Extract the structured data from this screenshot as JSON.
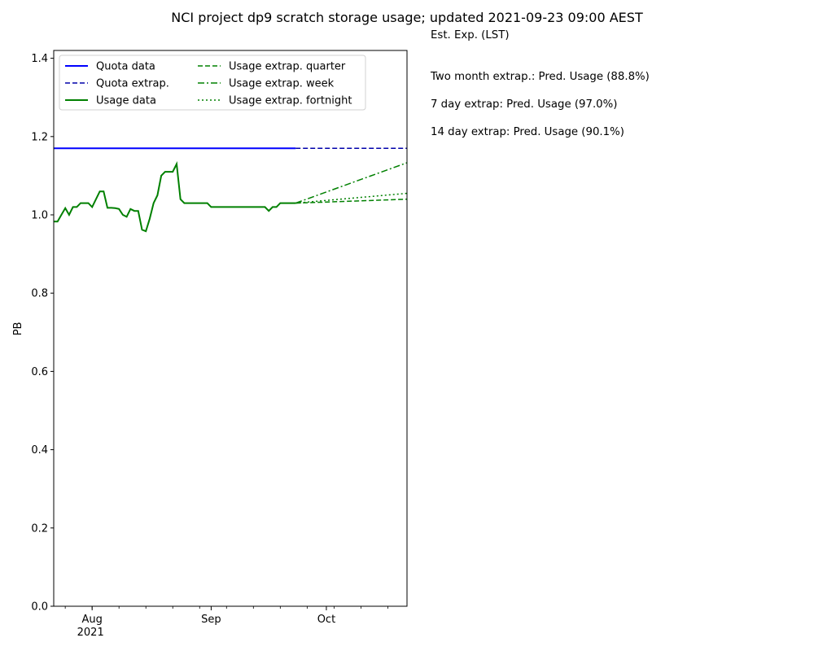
{
  "chart_data": {
    "type": "line",
    "title": "NCI project dp9 scratch storage usage; updated 2021-09-23 09:00 AEST",
    "xlabel": "",
    "ylabel": "PB",
    "ylim": [
      0,
      1.42
    ],
    "yticks": [
      "0.0",
      "0.2",
      "0.4",
      "0.6",
      "0.8",
      "1.0",
      "1.2",
      "1.4"
    ],
    "xlim": [
      "2021-07-22",
      "2021-10-22"
    ],
    "xticks": [
      {
        "date": "2021-08-01",
        "label": "Aug",
        "sublabel": "2021"
      },
      {
        "date": "2021-09-01",
        "label": "Sep",
        "sublabel": ""
      },
      {
        "date": "2021-10-01",
        "label": "Oct",
        "sublabel": ""
      }
    ],
    "legend_position": "top-left",
    "series": [
      {
        "name": "Quota data",
        "color": "#0000ff",
        "style": "solid",
        "points": [
          [
            "2021-07-22",
            1.17
          ],
          [
            "2021-09-23",
            1.17
          ]
        ]
      },
      {
        "name": "Quota extrap.",
        "color": "#0000aa",
        "style": "dashed",
        "points": [
          [
            "2021-09-23",
            1.17
          ],
          [
            "2021-10-22",
            1.17
          ]
        ]
      },
      {
        "name": "Usage data",
        "color": "#008000",
        "style": "solid",
        "points": [
          [
            "2021-07-22",
            0.983
          ],
          [
            "2021-07-23",
            0.983
          ],
          [
            "2021-07-24",
            1.0
          ],
          [
            "2021-07-25",
            1.017
          ],
          [
            "2021-07-26",
            1.0
          ],
          [
            "2021-07-27",
            1.02
          ],
          [
            "2021-07-28",
            1.02
          ],
          [
            "2021-07-29",
            1.03
          ],
          [
            "2021-07-30",
            1.03
          ],
          [
            "2021-07-31",
            1.03
          ],
          [
            "2021-08-01",
            1.02
          ],
          [
            "2021-08-02",
            1.04
          ],
          [
            "2021-08-03",
            1.06
          ],
          [
            "2021-08-04",
            1.06
          ],
          [
            "2021-08-05",
            1.018
          ],
          [
            "2021-08-06",
            1.018
          ],
          [
            "2021-08-07",
            1.017
          ],
          [
            "2021-08-08",
            1.015
          ],
          [
            "2021-08-09",
            1.0
          ],
          [
            "2021-08-10",
            0.995
          ],
          [
            "2021-08-11",
            1.015
          ],
          [
            "2021-08-12",
            1.01
          ],
          [
            "2021-08-13",
            1.01
          ],
          [
            "2021-08-14",
            0.962
          ],
          [
            "2021-08-15",
            0.958
          ],
          [
            "2021-08-16",
            0.99
          ],
          [
            "2021-08-17",
            1.03
          ],
          [
            "2021-08-18",
            1.05
          ],
          [
            "2021-08-19",
            1.1
          ],
          [
            "2021-08-20",
            1.11
          ],
          [
            "2021-08-21",
            1.11
          ],
          [
            "2021-08-22",
            1.11
          ],
          [
            "2021-08-23",
            1.13
          ],
          [
            "2021-08-24",
            1.04
          ],
          [
            "2021-08-25",
            1.03
          ],
          [
            "2021-08-26",
            1.03
          ],
          [
            "2021-08-27",
            1.03
          ],
          [
            "2021-08-28",
            1.03
          ],
          [
            "2021-08-29",
            1.03
          ],
          [
            "2021-08-30",
            1.03
          ],
          [
            "2021-08-31",
            1.03
          ],
          [
            "2021-09-01",
            1.02
          ],
          [
            "2021-09-02",
            1.02
          ],
          [
            "2021-09-03",
            1.02
          ],
          [
            "2021-09-04",
            1.02
          ],
          [
            "2021-09-05",
            1.02
          ],
          [
            "2021-09-06",
            1.02
          ],
          [
            "2021-09-07",
            1.02
          ],
          [
            "2021-09-08",
            1.02
          ],
          [
            "2021-09-09",
            1.02
          ],
          [
            "2021-09-10",
            1.02
          ],
          [
            "2021-09-11",
            1.02
          ],
          [
            "2021-09-12",
            1.02
          ],
          [
            "2021-09-13",
            1.02
          ],
          [
            "2021-09-14",
            1.02
          ],
          [
            "2021-09-15",
            1.02
          ],
          [
            "2021-09-16",
            1.01
          ],
          [
            "2021-09-17",
            1.02
          ],
          [
            "2021-09-18",
            1.02
          ],
          [
            "2021-09-19",
            1.03
          ],
          [
            "2021-09-20",
            1.03
          ],
          [
            "2021-09-21",
            1.03
          ],
          [
            "2021-09-22",
            1.03
          ],
          [
            "2021-09-23",
            1.03
          ]
        ]
      },
      {
        "name": "Usage extrap. quarter",
        "color": "#008000",
        "style": "dashed",
        "points": [
          [
            "2021-09-23",
            1.03
          ],
          [
            "2021-10-22",
            1.04
          ]
        ]
      },
      {
        "name": "Usage extrap. week",
        "color": "#008000",
        "style": "dashdot",
        "points": [
          [
            "2021-09-23",
            1.03
          ],
          [
            "2021-10-22",
            1.133
          ]
        ]
      },
      {
        "name": "Usage extrap. fortnight",
        "color": "#008000",
        "style": "dotted",
        "points": [
          [
            "2021-09-23",
            1.03
          ],
          [
            "2021-10-22",
            1.055
          ]
        ]
      }
    ]
  },
  "annotations": {
    "est_exp": "Est. Exp. (LST)",
    "two_month": "Two month extrap.: Pred. Usage (88.8%)",
    "seven_day": "7 day extrap: Pred. Usage (97.0%)",
    "fourteen_day": "14 day extrap: Pred. Usage (90.1%)"
  }
}
